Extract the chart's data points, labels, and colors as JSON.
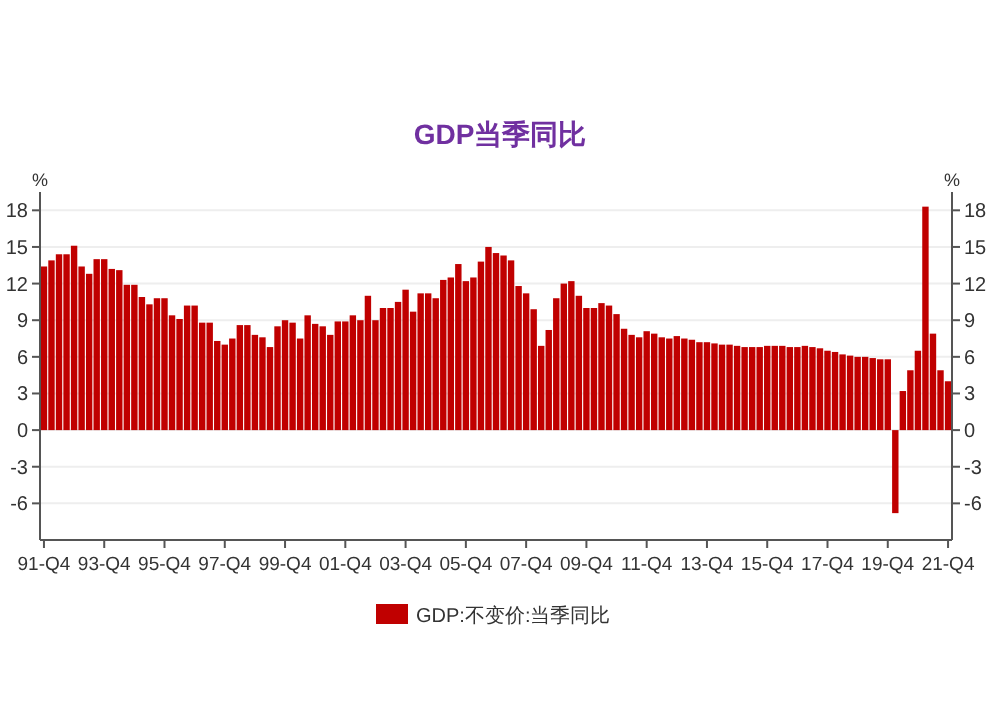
{
  "chart_data": {
    "type": "bar",
    "title": "GDP当季同比",
    "ylabel": "%",
    "y2label": "%",
    "categories": [
      "91-Q4",
      null,
      null,
      null,
      null,
      null,
      null,
      null,
      "93-Q4",
      null,
      null,
      null,
      null,
      null,
      null,
      null,
      "95-Q4",
      null,
      null,
      null,
      null,
      null,
      null,
      null,
      "97-Q4",
      null,
      null,
      null,
      null,
      null,
      null,
      null,
      "99-Q4",
      null,
      null,
      null,
      null,
      null,
      null,
      null,
      "01-Q4",
      null,
      null,
      null,
      null,
      null,
      null,
      null,
      "03-Q4",
      null,
      null,
      null,
      null,
      null,
      null,
      null,
      "05-Q4",
      null,
      null,
      null,
      null,
      null,
      null,
      null,
      "07-Q4",
      null,
      null,
      null,
      null,
      null,
      null,
      null,
      "09-Q4",
      null,
      null,
      null,
      null,
      null,
      null,
      null,
      "11-Q4",
      null,
      null,
      null,
      null,
      null,
      null,
      null,
      "13-Q4",
      null,
      null,
      null,
      null,
      null,
      null,
      null,
      "15-Q4",
      null,
      null,
      null,
      null,
      null,
      null,
      null,
      "17-Q4",
      null,
      null,
      null,
      null,
      null,
      null,
      null,
      "19-Q4",
      null,
      null,
      null,
      null,
      null,
      null,
      null,
      "21-Q4"
    ],
    "series": [
      {
        "name": "GDP:不变价:当季同比",
        "color": "#c00000",
        "values": [
          13.4,
          13.9,
          14.4,
          14.4,
          15.1,
          13.4,
          12.8,
          14.0,
          14.0,
          13.2,
          13.1,
          11.9,
          11.9,
          10.9,
          10.3,
          10.8,
          10.8,
          9.4,
          9.1,
          10.2,
          10.2,
          8.8,
          8.8,
          7.3,
          7.0,
          7.5,
          8.6,
          8.6,
          7.8,
          7.6,
          6.8,
          8.5,
          9.0,
          8.8,
          7.5,
          9.4,
          8.7,
          8.5,
          7.8,
          8.9,
          8.9,
          9.4,
          9.0,
          11.0,
          9.0,
          10.0,
          10.0,
          10.5,
          11.5,
          9.7,
          11.2,
          11.2,
          10.8,
          12.3,
          12.5,
          13.6,
          12.2,
          12.5,
          13.8,
          15.0,
          14.5,
          14.3,
          13.9,
          11.8,
          11.2,
          9.9,
          6.9,
          8.2,
          10.8,
          12.0,
          12.2,
          11.0,
          10.0,
          10.0,
          10.4,
          10.2,
          9.5,
          8.3,
          7.8,
          7.6,
          8.1,
          7.9,
          7.6,
          7.5,
          7.7,
          7.5,
          7.4,
          7.2,
          7.2,
          7.1,
          7.0,
          7.0,
          6.9,
          6.8,
          6.8,
          6.8,
          6.9,
          6.9,
          6.9,
          6.8,
          6.8,
          6.9,
          6.8,
          6.7,
          6.5,
          6.4,
          6.2,
          6.1,
          6.0,
          6.0,
          5.9,
          5.8,
          5.8,
          -6.8,
          3.2,
          4.9,
          6.5,
          18.3,
          7.9,
          4.9,
          4.0
        ]
      }
    ],
    "ylim": [
      -9,
      19.5
    ],
    "yticks": [
      -6,
      -3,
      0,
      3,
      6,
      9,
      12,
      15,
      18
    ],
    "y2lim": [
      -9,
      19.5
    ],
    "y2ticks": [
      -6,
      -3,
      0,
      3,
      6,
      9,
      12,
      15,
      18
    ],
    "grid": "y",
    "legend": "bottom"
  }
}
